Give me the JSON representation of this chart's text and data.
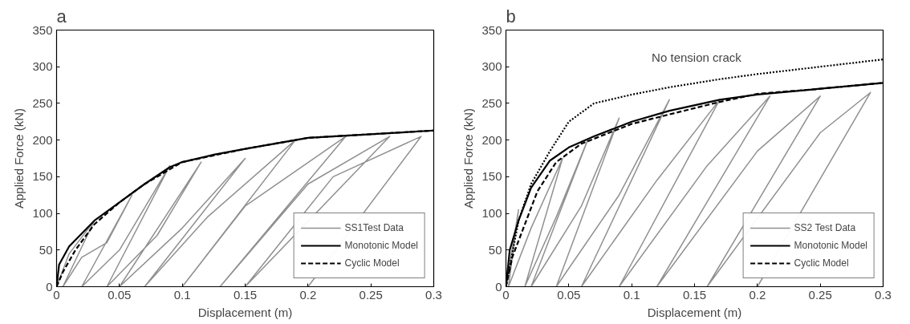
{
  "chart_data": [
    {
      "type": "line",
      "title": "a",
      "xlabel": "Displacement (m)",
      "ylabel": "Applied Force (kN)",
      "xlim": [
        0,
        0.3
      ],
      "ylim": [
        0,
        350
      ],
      "xticks": [
        0,
        0.05,
        0.1,
        0.15,
        0.2,
        0.25,
        0.3
      ],
      "yticks": [
        0,
        50,
        100,
        150,
        200,
        250,
        300,
        350
      ],
      "grid": false,
      "legend": "bottom right",
      "series": [
        {
          "name": "SS1Test Data",
          "color": "#909090",
          "line_style": "solid",
          "x": [
            0,
            0.01,
            0.03,
            0.005,
            0.02,
            0.04,
            0.06,
            0.02,
            0.05,
            0.09,
            0.04,
            0.08,
            0.115,
            0.05,
            0.1,
            0.15,
            0.07,
            0.12,
            0.19,
            0.1,
            0.15,
            0.23,
            0.13,
            0.2,
            0.265,
            0.15,
            0.22,
            0.29,
            0.2
          ],
          "values": [
            0,
            45,
            90,
            0,
            40,
            60,
            125,
            0,
            50,
            165,
            0,
            70,
            170,
            0,
            80,
            175,
            0,
            95,
            200,
            0,
            110,
            205,
            0,
            140,
            205,
            0,
            150,
            205,
            0
          ]
        },
        {
          "name": "Monotonic Model",
          "color": "#000000",
          "line_style": "solid",
          "x": [
            0,
            0.002,
            0.01,
            0.03,
            0.05,
            0.07,
            0.09,
            0.1,
            0.125,
            0.15,
            0.2,
            0.25,
            0.3
          ],
          "values": [
            0,
            30,
            55,
            90,
            115,
            140,
            163,
            170,
            180,
            188,
            203,
            208,
            213
          ]
        },
        {
          "name": "Cyclic Model",
          "color": "#000000",
          "line_style": "dashed",
          "x": [
            0,
            0.005,
            0.015,
            0.03,
            0.05,
            0.07,
            0.1,
            0.15,
            0.2,
            0.3
          ],
          "values": [
            0,
            20,
            50,
            85,
            115,
            140,
            170,
            188,
            203,
            213
          ]
        }
      ]
    },
    {
      "type": "line",
      "title": "b",
      "xlabel": "Displacement (m)",
      "ylabel": "Applied Force (kN)",
      "xlim": [
        0,
        0.3
      ],
      "ylim": [
        0,
        350
      ],
      "xticks": [
        0,
        0.05,
        0.1,
        0.15,
        0.2,
        0.25,
        0.3
      ],
      "yticks": [
        0,
        50,
        100,
        150,
        200,
        250,
        300,
        350
      ],
      "grid": false,
      "legend": "bottom right",
      "annotations": [
        {
          "text": "No tension crack",
          "x": 0.2,
          "y": 290
        }
      ],
      "series": [
        {
          "name": "SS2 Test Data",
          "color": "#909090",
          "line_style": "solid",
          "x": [
            0,
            0.01,
            0.002,
            0.02,
            0.045,
            0.015,
            0.04,
            0.065,
            0.02,
            0.06,
            0.09,
            0.04,
            0.09,
            0.13,
            0.06,
            0.12,
            0.17,
            0.09,
            0.16,
            0.21,
            0.12,
            0.2,
            0.25,
            0.16,
            0.25,
            0.29,
            0.2
          ],
          "values": [
            0,
            105,
            0,
            80,
            175,
            0,
            95,
            200,
            0,
            110,
            230,
            0,
            125,
            255,
            0,
            145,
            255,
            0,
            165,
            260,
            0,
            185,
            260,
            0,
            210,
            265,
            0
          ]
        },
        {
          "name": "Monotonic Model",
          "color": "#000000",
          "line_style": "solid",
          "x": [
            0,
            0.003,
            0.01,
            0.02,
            0.035,
            0.05,
            0.07,
            0.1,
            0.13,
            0.17,
            0.2,
            0.25,
            0.3
          ],
          "values": [
            0,
            50,
            90,
            135,
            172,
            190,
            205,
            225,
            240,
            255,
            262,
            270,
            278
          ]
        },
        {
          "name": "Cyclic Model",
          "color": "#000000",
          "line_style": "dashed",
          "x": [
            0,
            0.005,
            0.015,
            0.025,
            0.04,
            0.06,
            0.1,
            0.13,
            0.17,
            0.2,
            0.25,
            0.3
          ],
          "values": [
            0,
            40,
            85,
            130,
            170,
            195,
            222,
            235,
            252,
            263,
            270,
            278
          ]
        },
        {
          "color": "#000000",
          "line_style": "dotted",
          "x": [
            0,
            0.01,
            0.02,
            0.035,
            0.05,
            0.07,
            0.1,
            0.13,
            0.17,
            0.2,
            0.25,
            0.3
          ],
          "values": [
            0,
            90,
            140,
            185,
            225,
            250,
            262,
            272,
            283,
            290,
            300,
            310
          ]
        }
      ]
    }
  ]
}
